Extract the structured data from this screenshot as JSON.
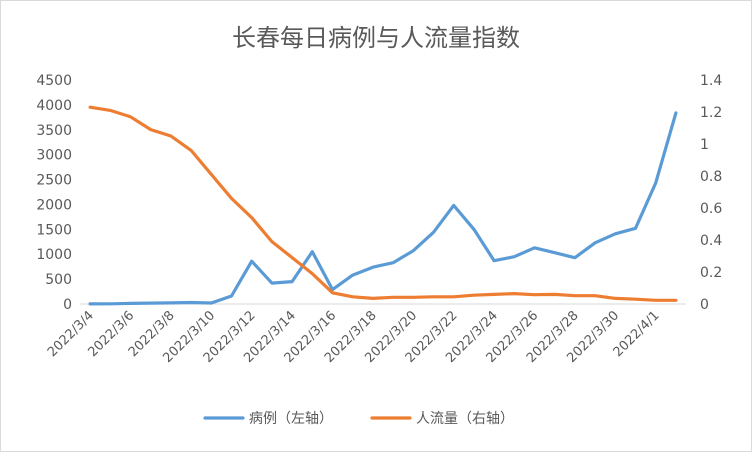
{
  "chart_data": {
    "type": "line",
    "title": "长春每日病例与人流量指数",
    "x": [
      "2022/3/4",
      "2022/3/5",
      "2022/3/6",
      "2022/3/7",
      "2022/3/8",
      "2022/3/9",
      "2022/3/10",
      "2022/3/11",
      "2022/3/12",
      "2022/3/13",
      "2022/3/14",
      "2022/3/15",
      "2022/3/16",
      "2022/3/17",
      "2022/3/18",
      "2022/3/19",
      "2022/3/20",
      "2022/3/21",
      "2022/3/22",
      "2022/3/23",
      "2022/3/24",
      "2022/3/25",
      "2022/3/26",
      "2022/3/27",
      "2022/3/28",
      "2022/3/29",
      "2022/3/30",
      "2022/3/31",
      "2022/4/1",
      "2022/4/2"
    ],
    "x_tick_labels": [
      "2022/3/4",
      "2022/3/6",
      "2022/3/8",
      "2022/3/10",
      "2022/3/12",
      "2022/3/14",
      "2022/3/16",
      "2022/3/18",
      "2022/3/20",
      "2022/3/22",
      "2022/3/24",
      "2022/3/26",
      "2022/3/28",
      "2022/3/30",
      "2022/4/1"
    ],
    "y_left": {
      "ylim": [
        0,
        4500
      ],
      "ticks": [
        0,
        500,
        1000,
        1500,
        2000,
        2500,
        3000,
        3500,
        4000,
        4500
      ]
    },
    "y_right": {
      "ylim": [
        0,
        1.4
      ],
      "ticks": [
        "0",
        "0.2",
        "0.4",
        "0.6",
        "0.8",
        "1",
        "1.2",
        "1.4"
      ]
    },
    "series": [
      {
        "name": "病例（左轴）",
        "axis": "left",
        "color": "#5B9BD5",
        "values": [
          2,
          4,
          12,
          18,
          22,
          30,
          20,
          160,
          860,
          420,
          450,
          1050,
          290,
          580,
          740,
          830,
          1070,
          1440,
          1980,
          1500,
          870,
          950,
          1130,
          1030,
          930,
          1230,
          1410,
          1520,
          2430,
          3840
        ]
      },
      {
        "name": "人流量（右轴）",
        "axis": "right",
        "color": "#ED7D31",
        "values": [
          1.23,
          1.21,
          1.17,
          1.09,
          1.05,
          0.96,
          0.81,
          0.66,
          0.54,
          0.39,
          0.29,
          0.19,
          0.07,
          0.045,
          0.035,
          0.042,
          0.042,
          0.045,
          0.045,
          0.055,
          0.06,
          0.065,
          0.058,
          0.06,
          0.052,
          0.052,
          0.035,
          0.03,
          0.023,
          0.023
        ]
      }
    ],
    "grid": false,
    "legend": "bottom"
  }
}
